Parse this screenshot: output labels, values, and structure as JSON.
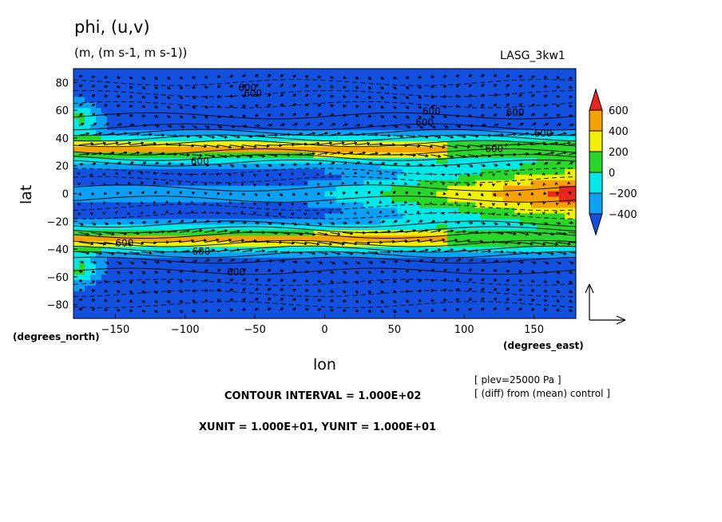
{
  "chart_data": {
    "type": "contour",
    "title": "phi, (u,v)",
    "subtitle": "(m, (m s-1, m s-1))",
    "model": "LASG_3kw1",
    "xlabel": "lon",
    "ylabel": "lat",
    "x_units": "(degrees_east)",
    "y_units": "(degrees_north)",
    "xlim": [
      -180,
      180
    ],
    "ylim": [
      -90,
      90
    ],
    "x_ticks": [
      -150,
      -100,
      -50,
      0,
      50,
      100,
      150
    ],
    "y_ticks": [
      80,
      60,
      40,
      20,
      0,
      -20,
      -40,
      -60,
      -80
    ],
    "colorbar": {
      "levels": [
        600,
        400,
        200,
        0,
        -200,
        -400
      ],
      "colors": [
        "#e8261f",
        "#f5a100",
        "#f0f000",
        "#29d62a",
        "#00e8e8",
        "#0aa0f5",
        "#1250e0"
      ]
    },
    "contour_labels": [
      "600",
      "600",
      "600",
      "600",
      "600",
      "600",
      "600",
      "600",
      "600",
      "600",
      "600"
    ],
    "contour_interval": "CONTOUR INTERVAL = 1.000E+02",
    "vector_units": "XUNIT = 1.000E+01, YUNIT = 1.000E+01",
    "plev": "[ plev=25000 Pa ]",
    "comparison": "[ (diff) from (mean) control ]"
  }
}
